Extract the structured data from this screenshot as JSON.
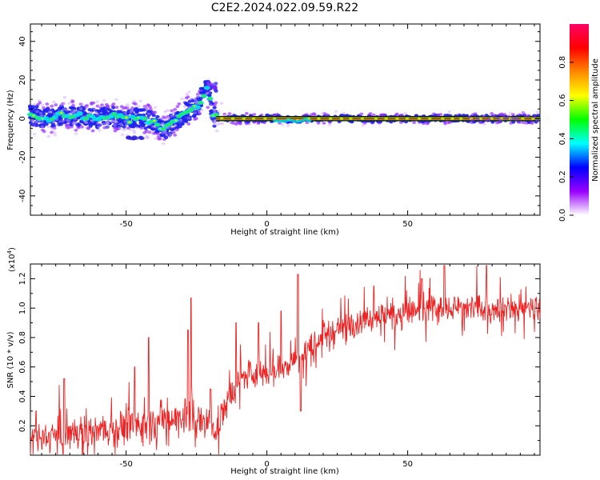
{
  "title": "C2E2.2024.022.09.59.R22",
  "chart_data": [
    {
      "type": "heatmap",
      "xlabel": "Height of straight line (km)",
      "ylabel": "Frequency (Hz)",
      "xlim": [
        -84,
        97
      ],
      "ylim": [
        -50,
        49
      ],
      "xticks": [
        -50,
        0,
        50
      ],
      "yticks": [
        -40,
        -20,
        0,
        20,
        40
      ],
      "colorbar": {
        "label": "Normalized spectral amplitude",
        "range": [
          0,
          1
        ],
        "ticks": [
          "0.0",
          "0.2",
          "0.4",
          "0.6",
          "0.8"
        ],
        "colors": [
          "#ffffff",
          "#9900ff",
          "#0000ff",
          "#00ffff",
          "#00ff00",
          "#ffff00",
          "#ff8800",
          "#ff0000",
          "#ff0066"
        ]
      },
      "ridge": [
        [
          -84,
          2
        ],
        [
          -78,
          0
        ],
        [
          -72,
          2
        ],
        [
          -66,
          1
        ],
        [
          -60,
          0
        ],
        [
          -55,
          1
        ],
        [
          -50,
          0
        ],
        [
          -45,
          1
        ],
        [
          -40,
          -2
        ],
        [
          -36,
          -5
        ],
        [
          -32,
          0
        ],
        [
          -28,
          4
        ],
        [
          -24,
          7
        ],
        [
          -21,
          17
        ],
        [
          -19,
          1
        ],
        [
          -15,
          0
        ],
        [
          -10,
          0
        ],
        [
          -5,
          0
        ],
        [
          0,
          0
        ],
        [
          5,
          0
        ],
        [
          10,
          -1
        ],
        [
          15,
          0
        ],
        [
          20,
          0
        ],
        [
          30,
          0
        ],
        [
          40,
          0
        ],
        [
          50,
          0
        ],
        [
          60,
          0
        ],
        [
          70,
          0
        ],
        [
          80,
          0
        ],
        [
          90,
          0
        ],
        [
          97,
          0
        ]
      ]
    },
    {
      "type": "line",
      "xlabel": "Height of straight line (km)",
      "ylabel": "SNR (10 * v/v)",
      "y_scale_label": "(x10",
      "y_scale_exp": "4",
      "y_scale_close": ")",
      "xlim": [
        -84,
        97
      ],
      "ylim": [
        0,
        1.3
      ],
      "xticks": [
        -50,
        0,
        50
      ],
      "yticks": [
        0.2,
        0.4,
        0.6,
        0.8,
        1.0,
        1.2
      ],
      "color": "#ee2222",
      "trend": [
        [
          -84,
          0.1
        ],
        [
          -70,
          0.15
        ],
        [
          -60,
          0.16
        ],
        [
          -50,
          0.2
        ],
        [
          -40,
          0.22
        ],
        [
          -30,
          0.28
        ],
        [
          -20,
          0.2
        ],
        [
          -17,
          0.2
        ],
        [
          -15,
          0.35
        ],
        [
          -10,
          0.5
        ],
        [
          -5,
          0.55
        ],
        [
          0,
          0.55
        ],
        [
          5,
          0.6
        ],
        [
          10,
          0.65
        ],
        [
          15,
          0.7
        ],
        [
          20,
          0.8
        ],
        [
          25,
          0.85
        ],
        [
          30,
          0.9
        ],
        [
          40,
          0.95
        ],
        [
          50,
          0.97
        ],
        [
          60,
          1.0
        ],
        [
          70,
          1.0
        ],
        [
          80,
          1.0
        ],
        [
          90,
          1.0
        ],
        [
          97,
          1.0
        ]
      ],
      "peaks": [
        [
          -82,
          0.3
        ],
        [
          -72,
          0.52
        ],
        [
          -47,
          0.6
        ],
        [
          -42,
          0.8
        ],
        [
          -27,
          1.07
        ],
        [
          -28,
          0.85
        ],
        [
          -20,
          0.45
        ],
        [
          -11,
          0.9
        ],
        [
          -3,
          0.9
        ],
        [
          5,
          0.98
        ],
        [
          11,
          1.23
        ],
        [
          12,
          0.3
        ],
        [
          38,
          1.15
        ],
        [
          55,
          1.2
        ],
        [
          63,
          1.29
        ],
        [
          78,
          1.29
        ]
      ]
    }
  ]
}
